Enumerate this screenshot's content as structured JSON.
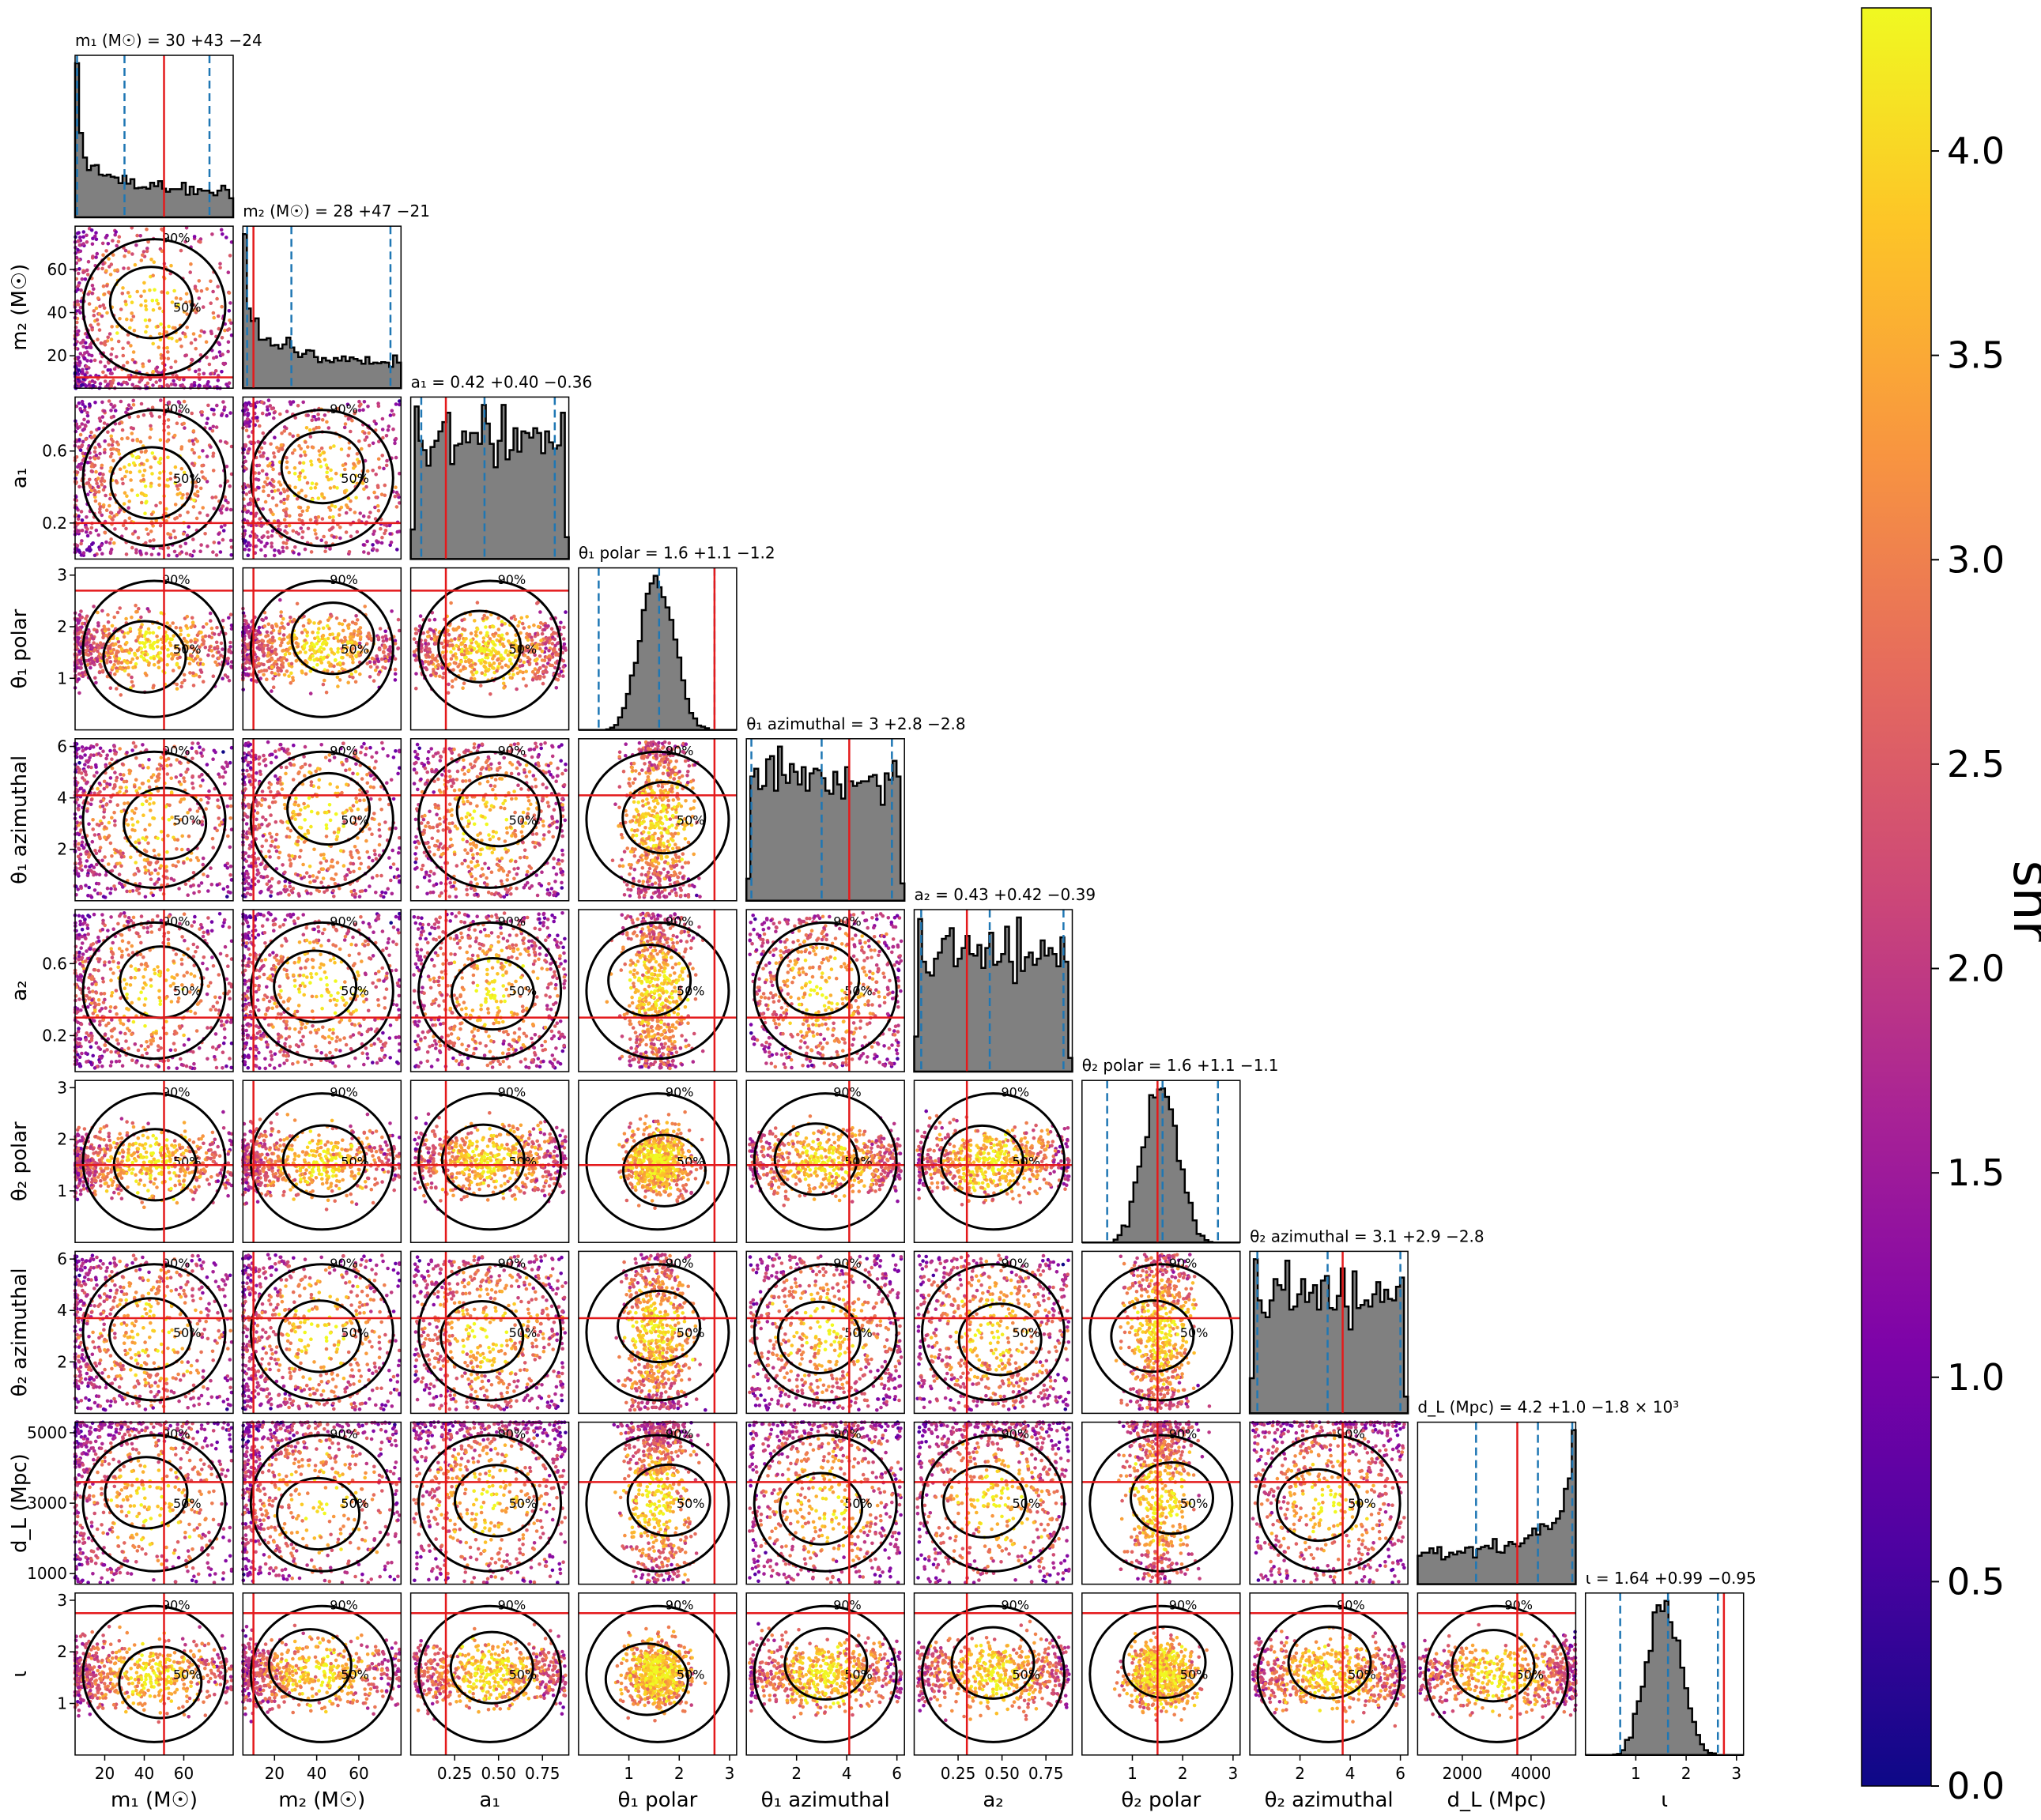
{
  "chart_data": {
    "type": "corner-scatter",
    "colorbar": {
      "label": "snr",
      "range": [
        0.0,
        4.35
      ],
      "ticks": [
        "0.0",
        "0.5",
        "1.0",
        "1.5",
        "2.0",
        "2.5",
        "3.0",
        "3.5",
        "4.0"
      ],
      "colormap": "plasma"
    },
    "contour_levels": [
      "50%",
      "90%"
    ],
    "parameters": [
      {
        "key": "m1",
        "axis_label": "m₁ (M☉)",
        "title": "m₁ (M☉) = 30 +43 −24",
        "range": [
          5,
          85
        ],
        "ticks": [
          20,
          40,
          60
        ],
        "tick_labels": [
          "20",
          "40",
          "60"
        ],
        "median": 30,
        "lower": 6,
        "upper": 73,
        "truth": 50,
        "hist_shape": "decreasing"
      },
      {
        "key": "m2",
        "axis_label": "m₂ (M☉)",
        "title": "m₂ (M☉) = 28 +47 −21",
        "range": [
          5,
          80
        ],
        "ticks": [
          20,
          40,
          60
        ],
        "tick_labels": [
          "20",
          "40",
          "60"
        ],
        "median": 28,
        "lower": 7,
        "upper": 75,
        "truth": 10,
        "hist_shape": "decreasing"
      },
      {
        "key": "a1",
        "axis_label": "a₁",
        "title": "a₁ = 0.42 +0.40 −0.36",
        "range": [
          0.0,
          0.9
        ],
        "ticks": [
          0.2,
          0.6
        ],
        "tick_labels": [
          "0.2",
          "0.6"
        ],
        "x_ticks": [
          0.25,
          0.5,
          0.75
        ],
        "x_tick_labels": [
          "0.25",
          "0.50",
          "0.75"
        ],
        "median": 0.42,
        "lower": 0.06,
        "upper": 0.82,
        "truth": 0.2,
        "hist_shape": "flat"
      },
      {
        "key": "t1p",
        "axis_label": "θ₁ polar",
        "title": "θ₁ polar = 1.6 +1.1 −1.2",
        "range": [
          0.0,
          3.14
        ],
        "ticks": [
          1,
          2,
          3
        ],
        "tick_labels": [
          "1",
          "2",
          "3"
        ],
        "median": 1.6,
        "lower": 0.4,
        "upper": 2.7,
        "truth": 2.7,
        "hist_shape": "peaked"
      },
      {
        "key": "t1a",
        "axis_label": "θ₁ azimuthal",
        "title": "θ₁ azimuthal = 3 +2.8 −2.8",
        "range": [
          0.0,
          6.3
        ],
        "ticks": [
          2,
          4,
          6
        ],
        "tick_labels": [
          "2",
          "4",
          "6"
        ],
        "median": 3.0,
        "lower": 0.2,
        "upper": 5.8,
        "truth": 4.1,
        "hist_shape": "flat"
      },
      {
        "key": "a2",
        "axis_label": "a₂",
        "title": "a₂ = 0.43 +0.42 −0.39",
        "range": [
          0.0,
          0.9
        ],
        "ticks": [
          0.2,
          0.6
        ],
        "tick_labels": [
          "0.2",
          "0.6"
        ],
        "x_ticks": [
          0.25,
          0.5,
          0.75
        ],
        "x_tick_labels": [
          "0.25",
          "0.50",
          "0.75"
        ],
        "median": 0.43,
        "lower": 0.04,
        "upper": 0.85,
        "truth": 0.3,
        "hist_shape": "flat"
      },
      {
        "key": "t2p",
        "axis_label": "θ₂ polar",
        "title": "θ₂ polar = 1.6 +1.1 −1.1",
        "range": [
          0.0,
          3.14
        ],
        "ticks": [
          1,
          2,
          3
        ],
        "tick_labels": [
          "1",
          "2",
          "3"
        ],
        "median": 1.6,
        "lower": 0.5,
        "upper": 2.7,
        "truth": 1.5,
        "hist_shape": "peaked"
      },
      {
        "key": "t2a",
        "axis_label": "θ₂ azimuthal",
        "title": "θ₂ azimuthal = 3.1 +2.9 −2.8",
        "range": [
          0.0,
          6.3
        ],
        "ticks": [
          2,
          4,
          6
        ],
        "tick_labels": [
          "2",
          "4",
          "6"
        ],
        "median": 3.1,
        "lower": 0.3,
        "upper": 6.0,
        "truth": 3.7,
        "hist_shape": "flat"
      },
      {
        "key": "dl",
        "axis_label": "d_L (Mpc)",
        "title": "d_L (Mpc) = 4.2 +1.0 −1.8 × 10³",
        "range": [
          700,
          5300
        ],
        "ticks": [
          1000,
          3000,
          5000
        ],
        "tick_labels": [
          "1000",
          "3000",
          "5000"
        ],
        "x_ticks": [
          2000,
          4000
        ],
        "x_tick_labels": [
          "2000",
          "4000"
        ],
        "median": 4200,
        "lower": 2400,
        "upper": 5200,
        "truth": 3600,
        "hist_shape": "increasing"
      },
      {
        "key": "iota",
        "axis_label": "ι",
        "title": "ι = 1.64 +0.99 −0.95",
        "range": [
          0.0,
          3.14
        ],
        "ticks": [
          1,
          2,
          3
        ],
        "tick_labels": [
          "1",
          "2",
          "3"
        ],
        "median": 1.64,
        "lower": 0.69,
        "upper": 2.63,
        "truth": 2.75,
        "hist_shape": "peaked"
      }
    ]
  }
}
